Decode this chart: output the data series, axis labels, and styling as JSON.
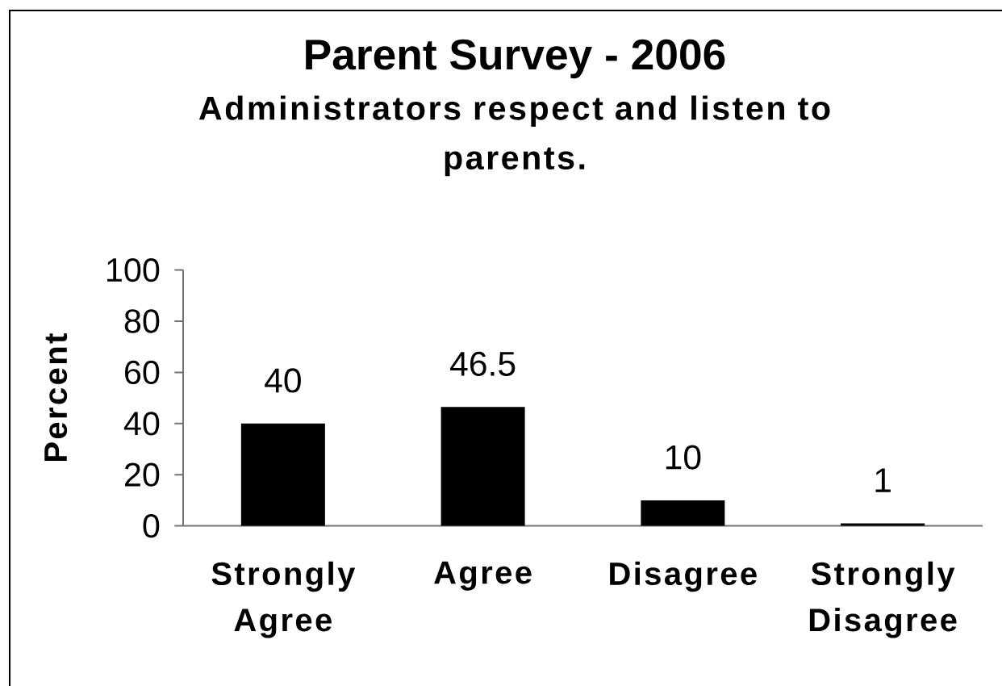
{
  "chart_data": {
    "type": "bar",
    "title": "Parent Survey - 2006",
    "subtitle": "Administrators respect and listen to parents.",
    "ylabel": "Percent",
    "categories": [
      "Strongly Agree",
      "Agree",
      "Disagree",
      "Strongly Disagree"
    ],
    "values": [
      40,
      46.5,
      10,
      1
    ],
    "color": "#000000",
    "ylim": [
      0,
      100
    ],
    "yticks": [
      0,
      20,
      40,
      60,
      80,
      100
    ],
    "data_labels": true
  }
}
